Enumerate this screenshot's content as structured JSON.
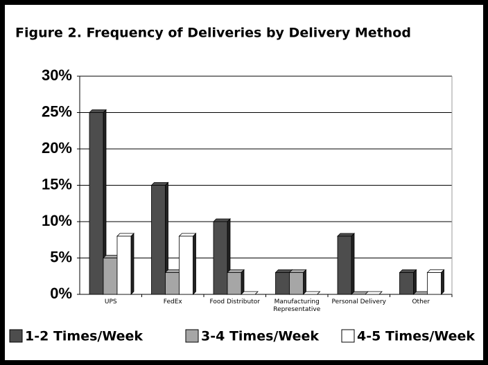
{
  "chart_data": {
    "type": "bar",
    "title": "Figure 2. Frequency of Deliveries by Delivery Method",
    "categories": [
      "UPS",
      "FedEx",
      "Food Distributor",
      "Manufacturing Representative",
      "Personal Delivery",
      "Other"
    ],
    "series": [
      {
        "name": "1-2 Times/Week",
        "color": "#4d4d4d",
        "values": [
          25,
          15,
          10,
          3,
          8,
          3
        ]
      },
      {
        "name": "3-4 Times/Week",
        "color": "#a6a6a6",
        "values": [
          5,
          3,
          3,
          3,
          0,
          0
        ]
      },
      {
        "name": "4-5 Times/Week",
        "color": "#ffffff",
        "values": [
          8,
          8,
          0,
          0,
          0,
          3
        ]
      }
    ],
    "ylim": [
      0,
      30
    ],
    "yticks": [
      {
        "value": 0,
        "label": "0%"
      },
      {
        "value": 5,
        "label": "5%"
      },
      {
        "value": 10,
        "label": "10%"
      },
      {
        "value": 15,
        "label": "15%"
      },
      {
        "value": 20,
        "label": "20%"
      },
      {
        "value": 25,
        "label": "25%"
      },
      {
        "value": 30,
        "label": "30%"
      }
    ],
    "grid": true,
    "legend": "bottom"
  }
}
